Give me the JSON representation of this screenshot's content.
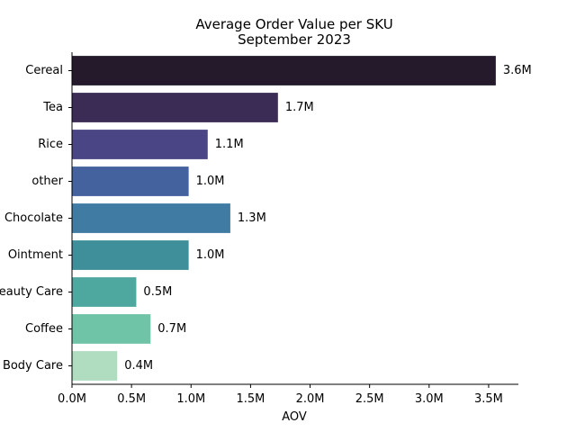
{
  "chart_data": {
    "type": "bar",
    "orientation": "horizontal",
    "title": "Average Order Value per SKU",
    "subtitle": "September 2023",
    "xlabel": "AOV",
    "ylabel": "",
    "xlim": [
      0,
      3.75
    ],
    "x_ticks": [
      0,
      0.5,
      1.0,
      1.5,
      2.0,
      2.5,
      3.0,
      3.5
    ],
    "x_tick_labels": [
      "0.0M",
      "0.5M",
      "1.0M",
      "1.5M",
      "2.0M",
      "2.5M",
      "3.0M",
      "3.5M"
    ],
    "grid": false,
    "legend": "none",
    "unit": "M",
    "categories": [
      "Cereal",
      "Tea",
      "Rice",
      "other",
      "Chocolate",
      "Ointment",
      "Beauty Care",
      "Coffee",
      "Body Care"
    ],
    "values": [
      3.56,
      1.73,
      1.14,
      0.98,
      1.33,
      0.98,
      0.54,
      0.66,
      0.38
    ],
    "data_labels": [
      "3.6M",
      "1.7M",
      "1.1M",
      "1.0M",
      "1.3M",
      "1.0M",
      "0.5M",
      "0.7M",
      "0.4M"
    ],
    "colors": [
      "#241a2b",
      "#3a2c54",
      "#4a4585",
      "#44629e",
      "#3f7ba3",
      "#3f8f9a",
      "#4ea8a0",
      "#6fc4a8",
      "#b0dcc0"
    ]
  }
}
